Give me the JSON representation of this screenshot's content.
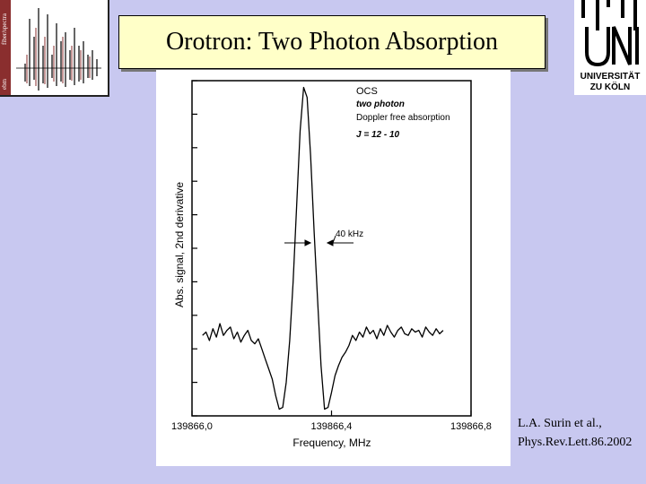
{
  "slide": {
    "title": "Orotron: Two Photon Absorption",
    "citation_line1": "L.A. Surin et al.,",
    "citation_line2": "Phys.Rev.Lett.86.2002"
  },
  "logos": {
    "left_text_1": "fiber/spectra",
    "left_text_2": "ebm",
    "right_text_1": "UNIVERSITÄT",
    "right_text_2": "ZU KÖLN"
  },
  "colors": {
    "background": "#c8c8f0",
    "title_box": "#ffffc8",
    "line": "#000000"
  },
  "chart_data": {
    "type": "line",
    "title": "",
    "xlabel": "Frequency, MHz",
    "ylabel": "Abs. signal, 2nd derivative",
    "xlim": [
      139866.0,
      139866.8
    ],
    "ylim": [
      -1.0,
      1.0
    ],
    "tick_labels": [
      "139866,0",
      "139866,4",
      "139866,8"
    ],
    "tick_values": [
      139866.0,
      139866.4,
      139866.8
    ],
    "annotations": {
      "molecule": "OCS",
      "mode": "two photon",
      "description": "Doppler free absorption",
      "transition": "J = 12 - 10",
      "width_label": "40 kHz"
    },
    "grid": false,
    "series": [
      {
        "x": [
          139866.03,
          139866.04,
          139866.05,
          139866.06,
          139866.07,
          139866.08,
          139866.09,
          139866.1,
          139866.11,
          139866.12,
          139866.13,
          139866.14,
          139866.15,
          139866.16,
          139866.17,
          139866.18,
          139866.19,
          139866.2,
          139866.21,
          139866.22,
          139866.23,
          139866.24,
          139866.25,
          139866.26,
          139866.27,
          139866.28,
          139866.29,
          139866.3,
          139866.31,
          139866.32,
          139866.33,
          139866.34,
          139866.35,
          139866.36,
          139866.37,
          139866.38,
          139866.39,
          139866.4,
          139866.41,
          139866.42,
          139866.43,
          139866.44,
          139866.45,
          139866.46,
          139866.47,
          139866.48,
          139866.49,
          139866.5,
          139866.51,
          139866.52,
          139866.53,
          139866.54,
          139866.55,
          139866.56,
          139866.57,
          139866.58,
          139866.59,
          139866.6,
          139866.61,
          139866.62,
          139866.63,
          139866.64,
          139866.65,
          139866.66,
          139866.67,
          139866.68,
          139866.69,
          139866.7,
          139866.71,
          139866.72
        ],
        "values": [
          -0.52,
          -0.5,
          -0.55,
          -0.48,
          -0.53,
          -0.45,
          -0.52,
          -0.49,
          -0.47,
          -0.54,
          -0.5,
          -0.56,
          -0.52,
          -0.49,
          -0.55,
          -0.57,
          -0.54,
          -0.6,
          -0.66,
          -0.72,
          -0.78,
          -0.88,
          -0.96,
          -0.95,
          -0.8,
          -0.55,
          -0.2,
          0.25,
          0.7,
          0.96,
          0.9,
          0.55,
          0.1,
          -0.3,
          -0.7,
          -0.96,
          -0.95,
          -0.86,
          -0.76,
          -0.7,
          -0.65,
          -0.62,
          -0.58,
          -0.52,
          -0.55,
          -0.5,
          -0.53,
          -0.47,
          -0.51,
          -0.49,
          -0.54,
          -0.48,
          -0.52,
          -0.46,
          -0.5,
          -0.53,
          -0.49,
          -0.47,
          -0.51,
          -0.52,
          -0.48,
          -0.5,
          -0.49,
          -0.53,
          -0.47,
          -0.5,
          -0.52,
          -0.48,
          -0.51,
          -0.49
        ]
      }
    ]
  }
}
